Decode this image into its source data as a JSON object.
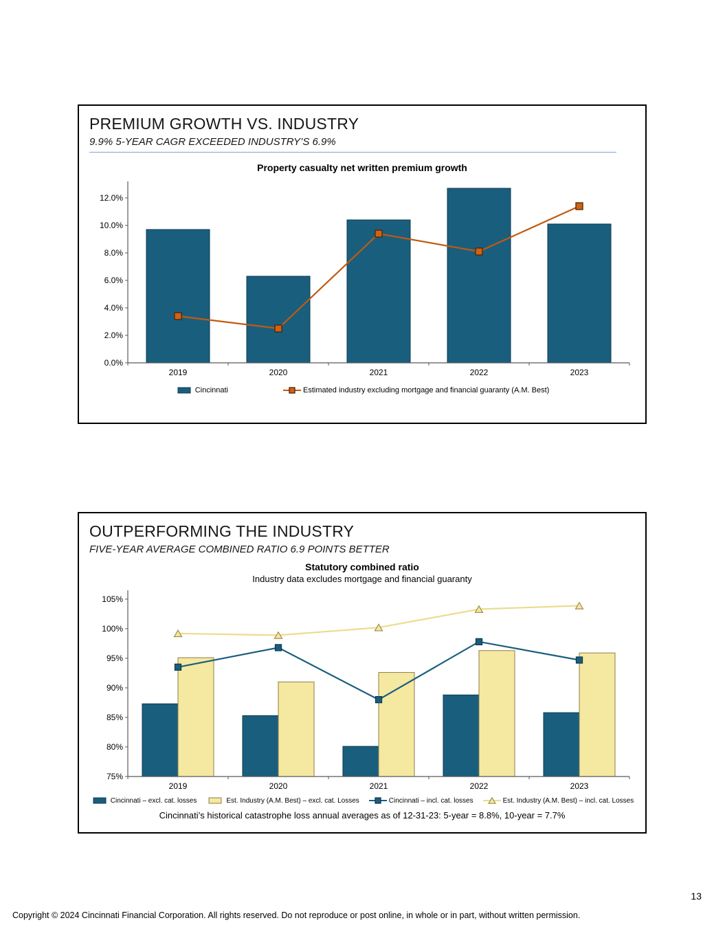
{
  "page": {
    "number": "13",
    "footer": "Copyright © 2024 Cincinnati Financial Corporation. All rights reserved. Do not reproduce or post online, in whole or in part, without written permission."
  },
  "panels": [
    {
      "title": "PREMIUM GROWTH VS. INDUSTRY",
      "subtitle": "9.9% 5-YEAR CAGR EXCEEDED INDUSTRY’S 6.9%"
    },
    {
      "title": "OUTPERFORMING THE INDUSTRY",
      "subtitle": "FIVE-YEAR AVERAGE COMBINED RATIO 6.9 POINTS BETTER",
      "note": "Cincinnati’s historical catastrophe loss annual averages as of 12-31-23: 5-year = 8.8%, 10-year = 7.7%"
    }
  ],
  "chart_data": [
    {
      "type": "bar",
      "title": "Property casualty net written premium growth",
      "categories": [
        "2019",
        "2020",
        "2021",
        "2022",
        "2023"
      ],
      "series": [
        {
          "name": "Cincinnati",
          "type": "bar",
          "color": "#1A5E7E",
          "stroke": "#0B3A50",
          "values": [
            9.7,
            6.3,
            10.4,
            12.7,
            10.1
          ]
        },
        {
          "name": "Estimated industry excluding mortgage and financial guaranty (A.M. Best)",
          "type": "line",
          "marker": "square",
          "color": "#C05A11",
          "marker_fill": "#CF6214",
          "marker_stroke": "#4A2508",
          "values": [
            3.4,
            2.5,
            9.4,
            8.1,
            11.4
          ]
        }
      ],
      "ylim": [
        0,
        13.2
      ],
      "yticks": [
        0,
        2,
        4,
        6,
        8,
        10,
        12
      ],
      "ytick_suffix": "%",
      "ytick_decimals": 1,
      "grid": false,
      "legend_position": "bottom"
    },
    {
      "type": "bar",
      "title": "Statutory combined ratio",
      "subtitle": "Industry data excludes mortgage and financial guaranty",
      "categories": [
        "2019",
        "2020",
        "2021",
        "2022",
        "2023"
      ],
      "series": [
        {
          "name": "Cincinnati – excl. cat. losses",
          "type": "bar",
          "color": "#1A5E7E",
          "stroke": "#0B3A50",
          "values": [
            87.3,
            85.3,
            80.1,
            88.8,
            85.8
          ]
        },
        {
          "name": "Est. Industry (A.M. Best) – excl. cat. Losses",
          "type": "bar",
          "color": "#F5E8A0",
          "stroke": "#8C7E46",
          "values": [
            95.1,
            91.0,
            92.6,
            96.3,
            95.9
          ]
        },
        {
          "name": "Cincinnati – incl. cat. losses",
          "type": "line",
          "marker": "square",
          "color": "#1A5E7E",
          "marker_fill": "#1A5E7E",
          "marker_stroke": "#0B3A50",
          "values": [
            93.5,
            96.8,
            88.0,
            97.8,
            94.7
          ]
        },
        {
          "name": "Est. Industry (A.M. Best) – incl. cat. Losses",
          "type": "line",
          "marker": "triangle",
          "color": "#EBDC8E",
          "marker_fill": "#F5E8A0",
          "marker_stroke": "#A08C50",
          "values": [
            99.2,
            98.9,
            100.2,
            103.3,
            103.9
          ]
        }
      ],
      "ylim": [
        75,
        106.5
      ],
      "yticks": [
        75,
        80,
        85,
        90,
        95,
        100,
        105
      ],
      "ytick_suffix": "%",
      "ytick_decimals": 0,
      "grid": false,
      "legend_position": "bottom"
    }
  ]
}
